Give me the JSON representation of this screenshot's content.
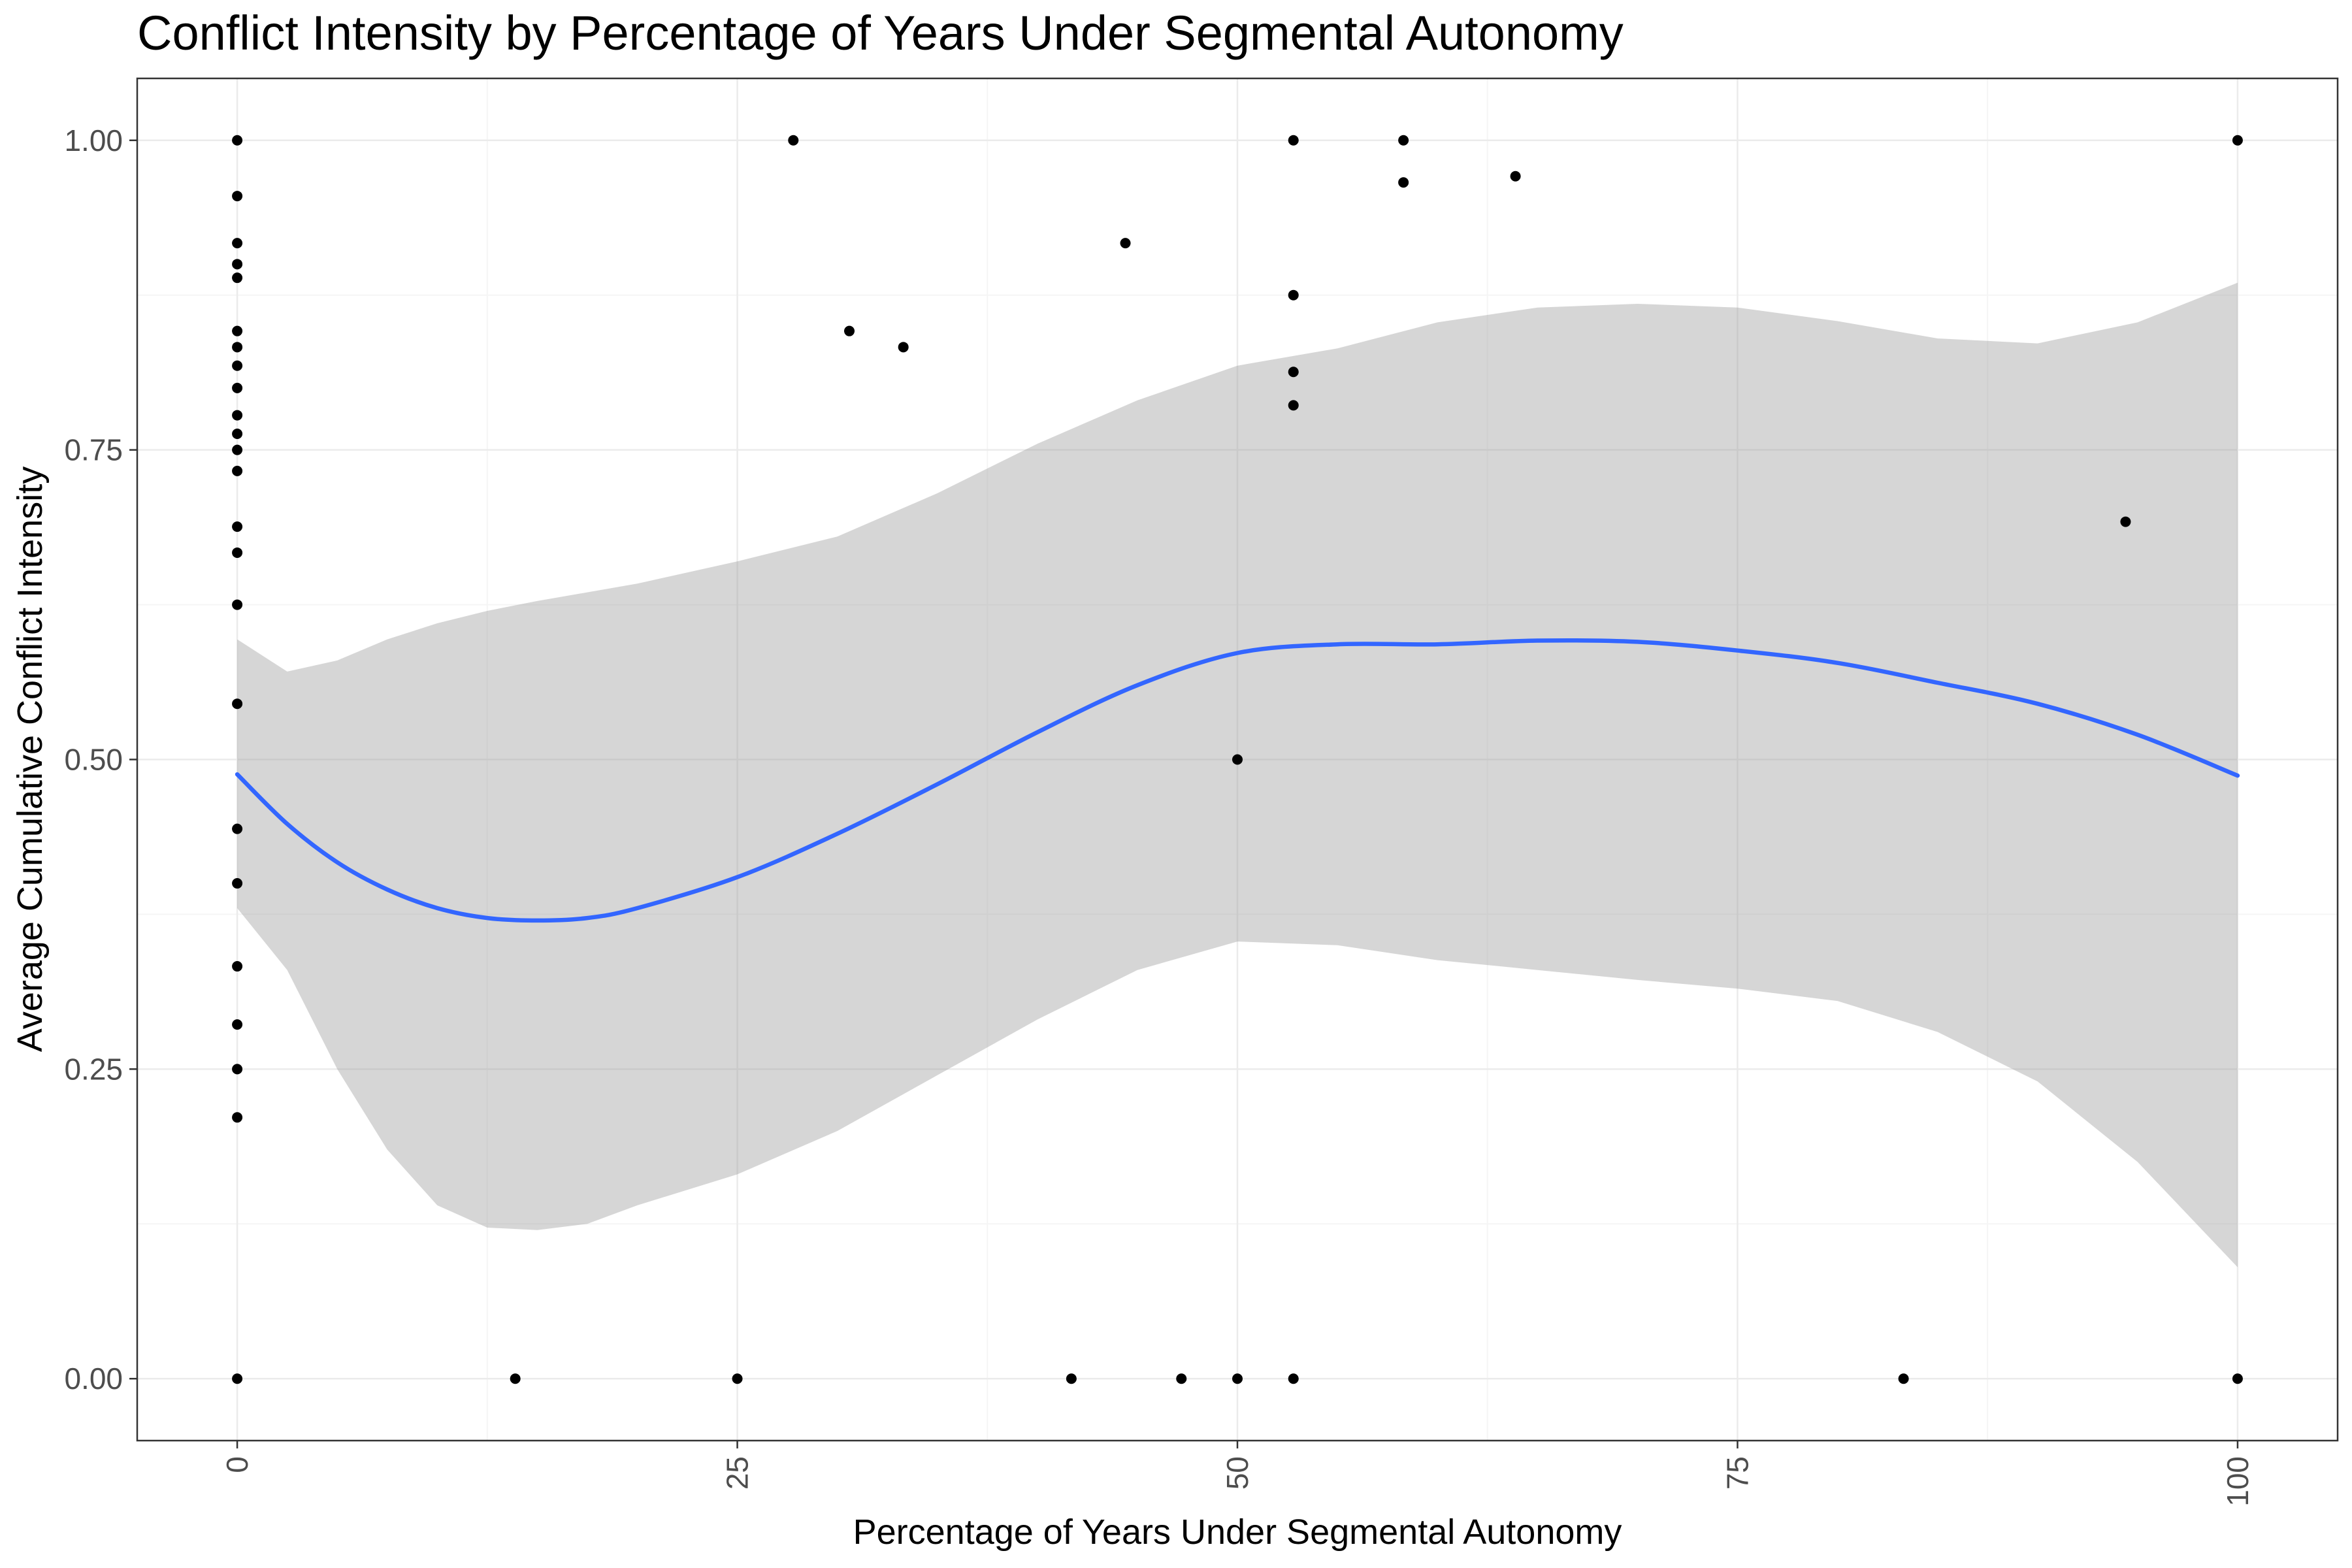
{
  "chart_data": {
    "type": "scatter",
    "title": "Conflict Intensity by Percentage of Years Under Segmental Autonomy",
    "xlabel": "Percentage of Years Under Segmental Autonomy",
    "ylabel": "Average Cumulative Conflict Intensity",
    "xlim": [
      -5,
      105
    ],
    "ylim": [
      -0.05,
      1.05
    ],
    "x_ticks": [
      0,
      25,
      50,
      75,
      100
    ],
    "x_tick_labels": [
      "0",
      "25",
      "50",
      "75",
      "100"
    ],
    "y_ticks": [
      0,
      0.25,
      0.5,
      0.75,
      1.0
    ],
    "y_tick_labels": [
      "0.00",
      "0.25",
      "0.50",
      "0.75",
      "1.00"
    ],
    "grid": true,
    "legend": "none",
    "colors": {
      "points": "#000000",
      "smooth_line": "#3366FF",
      "confidence_band": "#999999",
      "grid_major": "#ebebeb",
      "grid_minor": "#f5f5f5",
      "panel_border": "#333333"
    },
    "points": [
      {
        "x": 0,
        "y": 1.0
      },
      {
        "x": 0,
        "y": 0.955
      },
      {
        "x": 0,
        "y": 0.917
      },
      {
        "x": 0,
        "y": 0.9
      },
      {
        "x": 0,
        "y": 0.889
      },
      {
        "x": 0,
        "y": 0.846
      },
      {
        "x": 0,
        "y": 0.833
      },
      {
        "x": 0,
        "y": 0.818
      },
      {
        "x": 0,
        "y": 0.8
      },
      {
        "x": 0,
        "y": 0.778
      },
      {
        "x": 0,
        "y": 0.763
      },
      {
        "x": 0,
        "y": 0.75
      },
      {
        "x": 0,
        "y": 0.733
      },
      {
        "x": 0,
        "y": 0.688
      },
      {
        "x": 0,
        "y": 0.667
      },
      {
        "x": 0,
        "y": 0.625
      },
      {
        "x": 0,
        "y": 0.545
      },
      {
        "x": 0,
        "y": 0.444
      },
      {
        "x": 0,
        "y": 0.4
      },
      {
        "x": 0,
        "y": 0.333
      },
      {
        "x": 0,
        "y": 0.286
      },
      {
        "x": 0,
        "y": 0.25
      },
      {
        "x": 0,
        "y": 0.211
      },
      {
        "x": 0,
        "y": 0.0
      },
      {
        "x": 13.9,
        "y": 0.0
      },
      {
        "x": 25,
        "y": 0.0
      },
      {
        "x": 27.8,
        "y": 1.0
      },
      {
        "x": 30.6,
        "y": 0.846
      },
      {
        "x": 33.3,
        "y": 0.833
      },
      {
        "x": 41.7,
        "y": 0.0
      },
      {
        "x": 44.4,
        "y": 0.917
      },
      {
        "x": 47.2,
        "y": 0.0
      },
      {
        "x": 50,
        "y": 0.5
      },
      {
        "x": 50,
        "y": 0.0
      },
      {
        "x": 52.8,
        "y": 1.0
      },
      {
        "x": 52.8,
        "y": 0.875
      },
      {
        "x": 52.8,
        "y": 0.813
      },
      {
        "x": 52.8,
        "y": 0.786
      },
      {
        "x": 52.8,
        "y": 0.0
      },
      {
        "x": 58.3,
        "y": 1.0
      },
      {
        "x": 58.3,
        "y": 0.966
      },
      {
        "x": 63.9,
        "y": 0.971
      },
      {
        "x": 83.3,
        "y": 0.0
      },
      {
        "x": 94.4,
        "y": 0.692
      },
      {
        "x": 100,
        "y": 1.0
      },
      {
        "x": 100,
        "y": 0.0
      }
    ],
    "smooth": {
      "method": "loess",
      "x": [
        0,
        2.5,
        5,
        7.5,
        10,
        12.5,
        15,
        17.5,
        20,
        25,
        30,
        35,
        40,
        45,
        50,
        55,
        60,
        65,
        70,
        75,
        80,
        85,
        90,
        95,
        100
      ],
      "y": [
        0.488,
        0.448,
        0.417,
        0.395,
        0.38,
        0.372,
        0.37,
        0.372,
        0.38,
        0.405,
        0.44,
        0.48,
        0.522,
        0.56,
        0.586,
        0.593,
        0.593,
        0.596,
        0.595,
        0.588,
        0.578,
        0.562,
        0.545,
        0.52,
        0.487
      ],
      "ymin": [
        0.38,
        0.33,
        0.25,
        0.185,
        0.14,
        0.122,
        0.12,
        0.125,
        0.14,
        0.165,
        0.2,
        0.245,
        0.29,
        0.33,
        0.353,
        0.35,
        0.338,
        0.33,
        0.322,
        0.315,
        0.305,
        0.28,
        0.24,
        0.175,
        0.09
      ],
      "ymax": [
        0.597,
        0.571,
        0.58,
        0.597,
        0.61,
        0.62,
        0.628,
        0.635,
        0.642,
        0.66,
        0.68,
        0.715,
        0.755,
        0.79,
        0.818,
        0.832,
        0.853,
        0.865,
        0.868,
        0.865,
        0.854,
        0.84,
        0.836,
        0.853,
        0.885
      ]
    }
  }
}
